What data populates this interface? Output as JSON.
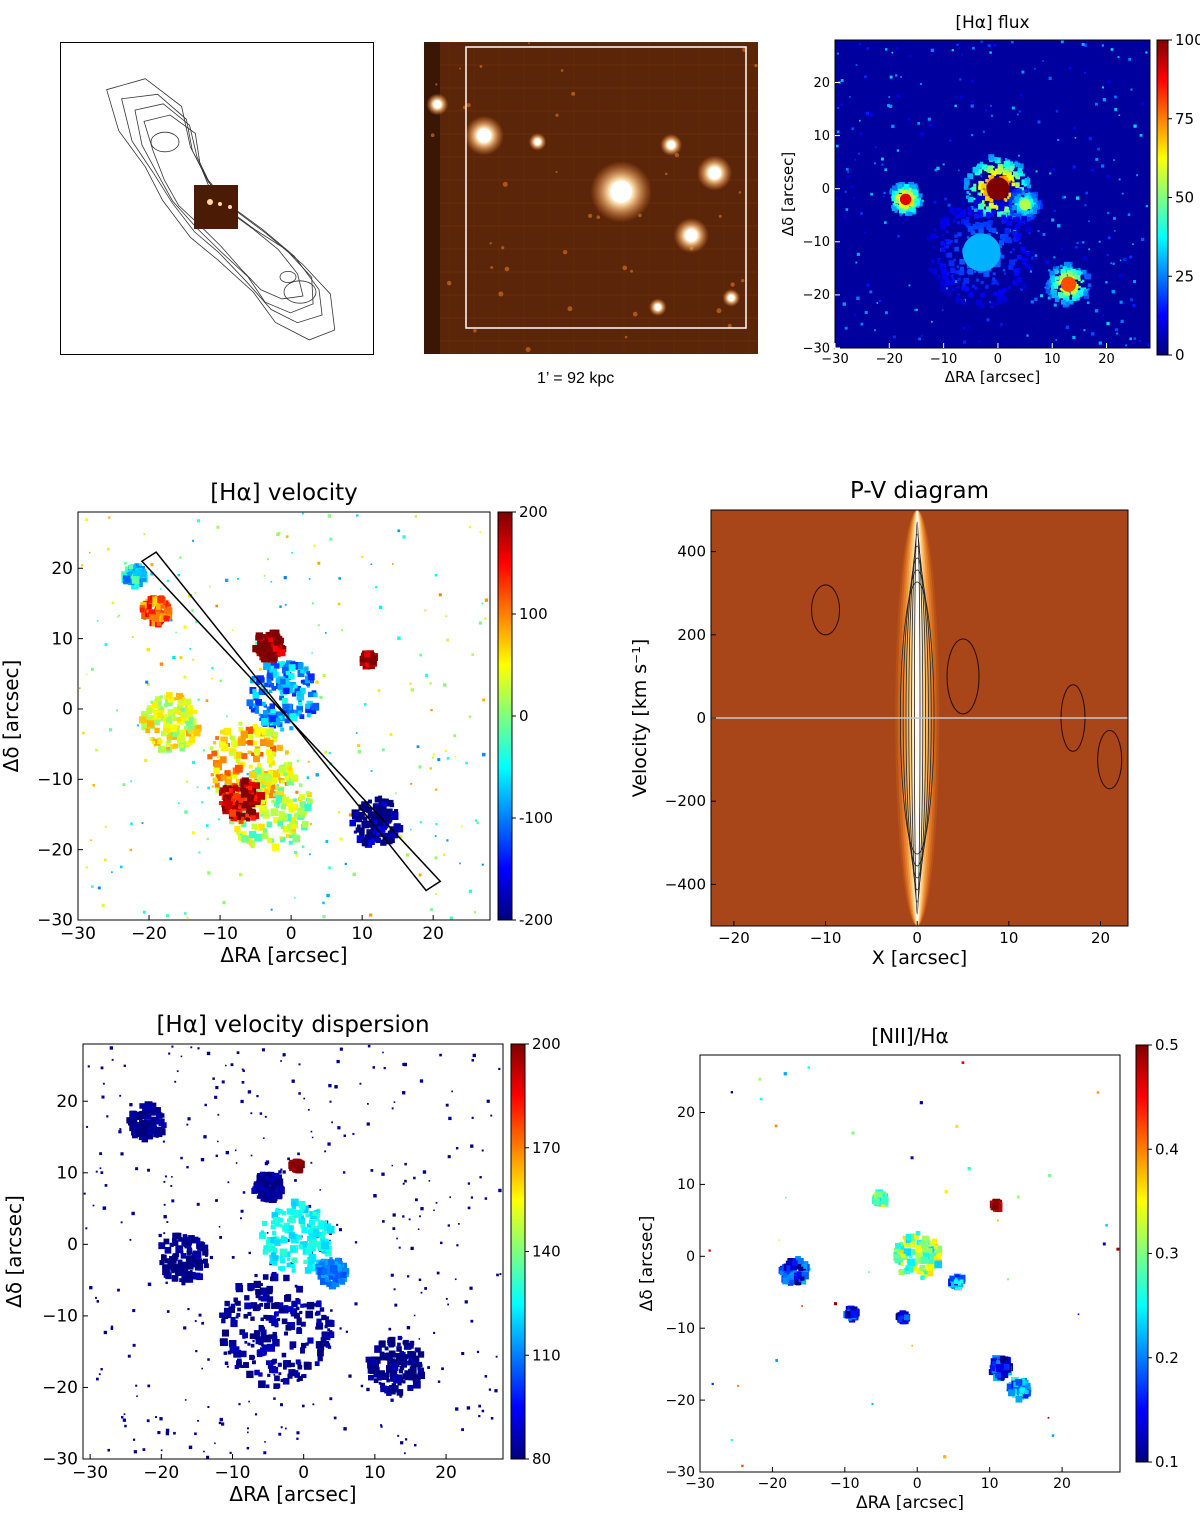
{
  "figure": {
    "scale_caption": "1’ = 92 kpc"
  },
  "colormaps": {
    "jet": [
      "#00007f",
      "#0000ff",
      "#007fff",
      "#00ffff",
      "#7fff7f",
      "#ffff00",
      "#ff7f00",
      "#ff0000",
      "#7f0000"
    ],
    "heat": [
      "#4a1500",
      "#8b3a0e",
      "#c45a18",
      "#f08a30",
      "#ffd080",
      "#ffffff"
    ]
  },
  "chart_data": [
    {
      "id": "radio-contours",
      "type": "other",
      "description_visible_text": "",
      "inset": "optical image inset at galaxy centre"
    },
    {
      "id": "optical-image",
      "type": "other",
      "sources": [
        {
          "x": 0.04,
          "y": 0.2,
          "r": 5
        },
        {
          "x": 0.18,
          "y": 0.3,
          "r": 9
        },
        {
          "x": 0.34,
          "y": 0.32,
          "r": 4
        },
        {
          "x": 0.59,
          "y": 0.48,
          "r": 14
        },
        {
          "x": 0.74,
          "y": 0.33,
          "r": 5
        },
        {
          "x": 0.87,
          "y": 0.42,
          "r": 8
        },
        {
          "x": 0.8,
          "y": 0.62,
          "r": 8
        },
        {
          "x": 0.7,
          "y": 0.85,
          "r": 4
        },
        {
          "x": 0.92,
          "y": 0.82,
          "r": 4
        }
      ]
    },
    {
      "id": "ha-flux",
      "type": "heatmap",
      "title": "[Hα] flux",
      "xlabel": "ΔRA [arcsec]",
      "ylabel": "Δδ [arcsec]",
      "xlim": [
        -30,
        28
      ],
      "ylim": [
        -30,
        28
      ],
      "xticks": [
        -30,
        -20,
        -10,
        0,
        10,
        20
      ],
      "yticks": [
        -30,
        -20,
        -10,
        0,
        10,
        20
      ],
      "colorbar": {
        "min": 0,
        "max": 100,
        "ticks": [
          0,
          25,
          50,
          75,
          100
        ]
      },
      "background_value": 3,
      "blobs": [
        {
          "x": 0,
          "y": 0,
          "r": 6,
          "value": 100
        },
        {
          "x": -17,
          "y": -2,
          "r": 3,
          "value": 90
        },
        {
          "x": 13,
          "y": -18,
          "r": 4,
          "value": 80
        },
        {
          "x": 5,
          "y": -3,
          "r": 3,
          "value": 55
        },
        {
          "x": -3,
          "y": -12,
          "r": 10,
          "value": 30
        }
      ]
    },
    {
      "id": "ha-velocity",
      "type": "heatmap",
      "title": "[Hα] velocity",
      "xlabel": "ΔRA [arcsec]",
      "ylabel": "Δδ [arcsec]",
      "xlim": [
        -30,
        28
      ],
      "ylim": [
        -30,
        28
      ],
      "xticks": [
        -30,
        -20,
        -10,
        0,
        10,
        20
      ],
      "yticks": [
        -30,
        -20,
        -10,
        0,
        10,
        20
      ],
      "colorbar": {
        "min": -200,
        "max": 200,
        "ticks": [
          -200,
          -100,
          0,
          100,
          200
        ]
      },
      "slit": [
        [
          -21,
          21
        ],
        [
          -19,
          22.3
        ],
        [
          21,
          -24.5
        ],
        [
          19,
          -25.8
        ]
      ],
      "blobs": [
        {
          "x": -17,
          "y": -2,
          "r": 4,
          "value": 40
        },
        {
          "x": -1,
          "y": 2,
          "r": 5,
          "value": -90
        },
        {
          "x": -6,
          "y": -8,
          "r": 6,
          "value": 70
        },
        {
          "x": -3,
          "y": -14,
          "r": 6,
          "value": 20
        },
        {
          "x": -7,
          "y": -13,
          "r": 3,
          "value": 170
        },
        {
          "x": 12,
          "y": -16,
          "r": 3.5,
          "value": -200
        },
        {
          "x": -3,
          "y": 9,
          "r": 2,
          "value": 200
        },
        {
          "x": -22,
          "y": 19,
          "r": 1.5,
          "value": -60
        },
        {
          "x": -19,
          "y": 14,
          "r": 2,
          "value": 110
        },
        {
          "x": 11,
          "y": 7,
          "r": 1,
          "value": 200
        }
      ]
    },
    {
      "id": "pv-diagram",
      "type": "heatmap",
      "title": "P-V diagram",
      "xlabel": "X [arcsec]",
      "ylabel": "Velocity [km s⁻¹]",
      "xlim": [
        -22.5,
        23
      ],
      "ylim": [
        -500,
        500
      ],
      "xticks": [
        -20,
        -10,
        0,
        10,
        20
      ],
      "yticks": [
        -400,
        -200,
        0,
        200,
        400
      ],
      "zero_line": 0
    },
    {
      "id": "ha-dispersion",
      "type": "heatmap",
      "title": "[Hα] velocity dispersion",
      "xlabel": "ΔRA [arcsec]",
      "ylabel": "Δδ [arcsec]",
      "xlim": [
        -31,
        28
      ],
      "ylim": [
        -30,
        28
      ],
      "xticks": [
        -30,
        -20,
        -10,
        0,
        10,
        20
      ],
      "yticks": [
        -30,
        -20,
        -10,
        0,
        10,
        20
      ],
      "colorbar": {
        "min": 80,
        "max": 200,
        "ticks": [
          80,
          110,
          140,
          170,
          200
        ]
      },
      "blobs": [
        {
          "x": -17,
          "y": -2,
          "r": 3.5,
          "value": 80
        },
        {
          "x": -1,
          "y": 1,
          "r": 5,
          "value": 125
        },
        {
          "x": -4,
          "y": -12,
          "r": 8,
          "value": 82
        },
        {
          "x": 13,
          "y": -17,
          "r": 4,
          "value": 80
        },
        {
          "x": -22,
          "y": 17,
          "r": 2.5,
          "value": 82
        },
        {
          "x": -5,
          "y": 8,
          "r": 2,
          "value": 82
        },
        {
          "x": 4,
          "y": -4,
          "r": 2,
          "value": 110
        },
        {
          "x": -1,
          "y": 11,
          "r": 0.7,
          "value": 200
        }
      ]
    },
    {
      "id": "nii-ha",
      "type": "heatmap",
      "title": "[NII]/Hα",
      "xlabel": "ΔRA [arcsec]",
      "ylabel": "Δδ [arcsec]",
      "xlim": [
        -30,
        28
      ],
      "ylim": [
        -30,
        28
      ],
      "xticks": [
        -30,
        -20,
        -10,
        0,
        10,
        20
      ],
      "yticks": [
        -30,
        -20,
        -10,
        0,
        10,
        20
      ],
      "colorbar": {
        "min": 0.1,
        "max": 0.5,
        "ticks": [
          0.1,
          0.2,
          0.3,
          0.4,
          0.5
        ]
      },
      "blobs": [
        {
          "x": -17,
          "y": -2,
          "r": 1.8,
          "value": 0.15
        },
        {
          "x": 0,
          "y": 0,
          "r": 3.2,
          "value": 0.3
        },
        {
          "x": 11.5,
          "y": -15.5,
          "r": 1.4,
          "value": 0.16
        },
        {
          "x": 14,
          "y": -18.5,
          "r": 1.4,
          "value": 0.22
        },
        {
          "x": 5.5,
          "y": -3.5,
          "r": 0.8,
          "value": 0.2
        },
        {
          "x": -9,
          "y": -8,
          "r": 0.8,
          "value": 0.15
        },
        {
          "x": -2,
          "y": -8.5,
          "r": 0.6,
          "value": 0.13
        },
        {
          "x": -5,
          "y": 8,
          "r": 0.8,
          "value": 0.3
        },
        {
          "x": 11,
          "y": 7,
          "r": 0.5,
          "value": 0.5
        }
      ]
    }
  ]
}
